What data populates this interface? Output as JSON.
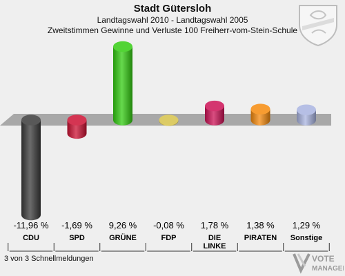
{
  "header": {
    "title": "Stadt Gütersloh",
    "subtitle1": "Landtagswahl 2010 - Landtagswahl 2005",
    "subtitle2": "Zweitstimmen Gewinne und Verluste 100 Freiherr-vom-Stein-Schule"
  },
  "footer": {
    "status": "3 von 3 Schnellmeldungen"
  },
  "brand": {
    "line1": "VOTE",
    "line2": "MANAGER"
  },
  "chart_data": {
    "type": "bar",
    "categories": [
      "CDU",
      "SPD",
      "GRÜNE",
      "FDP",
      "DIE LINKE",
      "PIRATEN",
      "Sonstige"
    ],
    "category_lines": [
      [
        "CDU"
      ],
      [
        "SPD"
      ],
      [
        "GRÜNE"
      ],
      [
        "FDP"
      ],
      [
        "DIE",
        "LINKE"
      ],
      [
        "PIRATEN"
      ],
      [
        "Sonstige"
      ]
    ],
    "values": [
      -11.96,
      -1.69,
      9.26,
      -0.08,
      1.78,
      1.38,
      1.29
    ],
    "value_labels": [
      "-11,96 %",
      "-1,69 %",
      "9,26 %",
      "-0,08 %",
      "1,78 %",
      "1,38 %",
      "1,29 %"
    ],
    "colors": [
      "#3b3b3b",
      "#cc1133",
      "#33cc11",
      "#d6c24a",
      "#cc1155",
      "#f58a0d",
      "#a9b4e0"
    ],
    "ylim": [
      -12.5,
      9.5
    ],
    "grid": false,
    "legend": "none"
  }
}
